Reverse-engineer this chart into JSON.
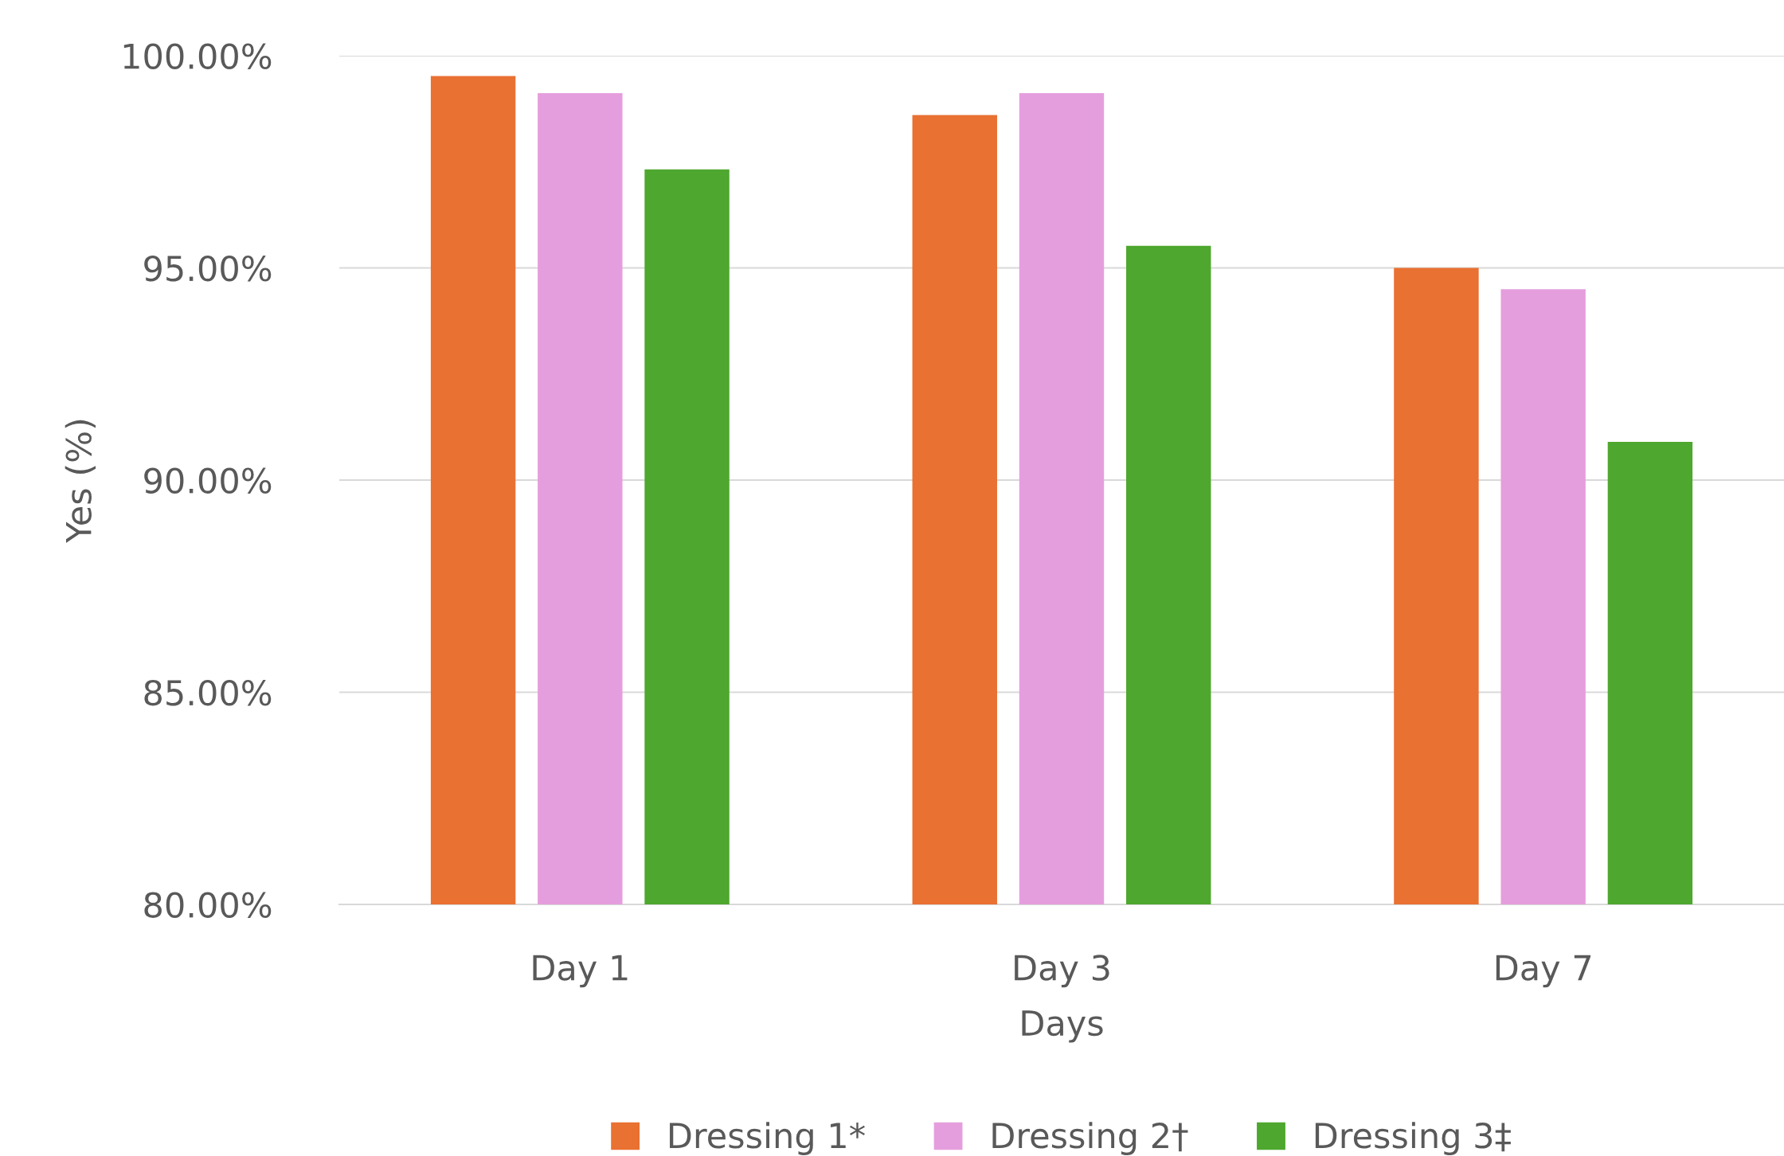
{
  "chart_data": {
    "type": "bar",
    "xlabel": "Days",
    "ylabel": "Yes (%)",
    "categories": [
      "Day 1",
      "Day 3",
      "Day 7"
    ],
    "series": [
      {
        "name": "Dressing 1*",
        "color": "#e97132",
        "values": [
          99.52,
          98.6,
          95.0
        ]
      },
      {
        "name": "Dressing 2†",
        "color": "#e59edd",
        "values": [
          99.12,
          99.12,
          94.5
        ]
      },
      {
        "name": "Dressing 3‡",
        "color": "#4ea72e",
        "values": [
          97.32,
          95.52,
          90.9
        ]
      }
    ],
    "ylim": [
      80,
      100
    ],
    "yticks": [
      {
        "value": 80,
        "label": "80.00%"
      },
      {
        "value": 85,
        "label": "85.00%"
      },
      {
        "value": 90,
        "label": "90.00%"
      },
      {
        "value": 95,
        "label": "95.00%"
      },
      {
        "value": 100,
        "label": "100.00%"
      }
    ],
    "grid": "y",
    "legend": "bottom"
  }
}
